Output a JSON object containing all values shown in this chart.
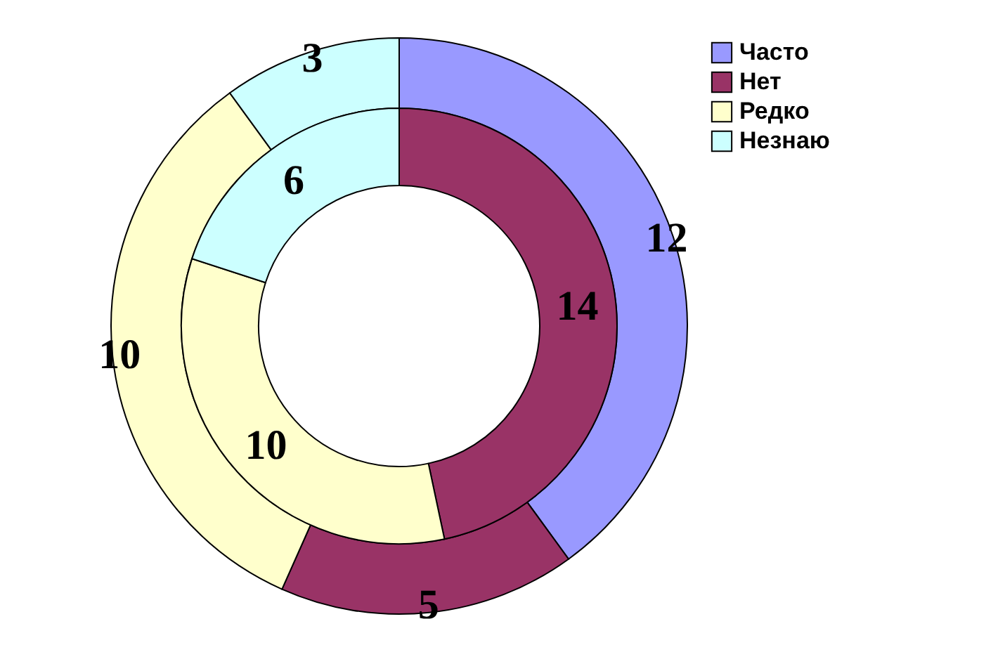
{
  "chart_data": {
    "type": "donut",
    "categories": [
      "Часто",
      "Нет",
      "Редко",
      "Незнаю"
    ],
    "colors": [
      "#9999ff",
      "#993366",
      "#ffffcc",
      "#ccffff"
    ],
    "series": [
      {
        "values": [
          12,
          5,
          10,
          3
        ]
      },
      {
        "values": [
          null,
          14,
          10,
          6
        ]
      }
    ],
    "data_labels": true,
    "legend": "right"
  }
}
